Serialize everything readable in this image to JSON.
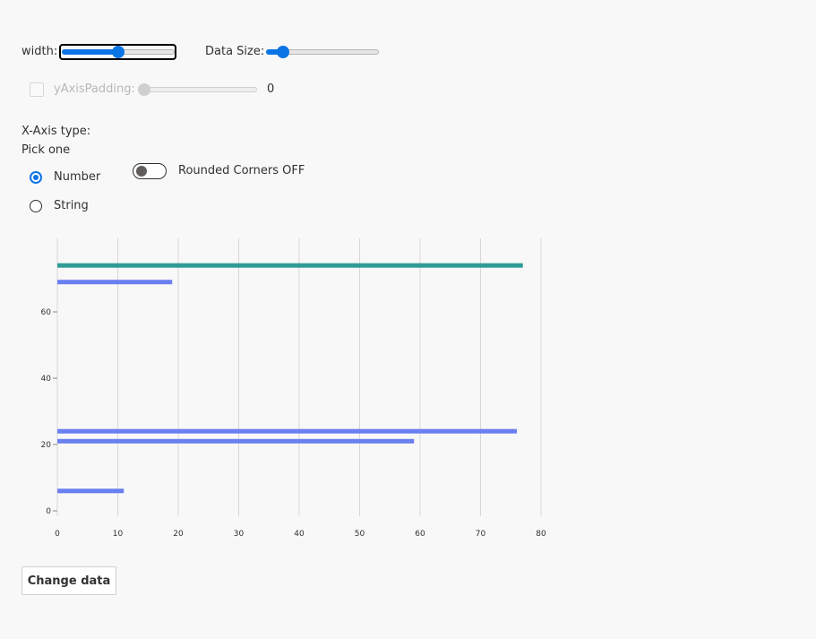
{
  "controls": {
    "width_label": "width:",
    "width_value_fraction": 0.5,
    "data_size_label": "Data Size:",
    "data_size_value_fraction": 0.15,
    "y_axis_padding_label": "yAxisPadding:",
    "y_axis_padding_value": "0",
    "y_axis_padding_fraction": 0.0,
    "x_axis_type_label": "X-Axis type:",
    "pick_one_label": "Pick one",
    "radio_number_label": "Number",
    "radio_string_label": "String",
    "rounded_corners_label": "Rounded Corners OFF",
    "change_data_label": "Change data"
  },
  "colors": {
    "accent": "#0b74e5",
    "bar_primary": "#6a7ff0",
    "bar_highlight": "#2e9c96",
    "gridline": "#d7d7d7",
    "axis_text": "#323130"
  },
  "chart_data": {
    "type": "bar",
    "orientation": "horizontal",
    "x_ticks": [
      0,
      10,
      20,
      30,
      40,
      50,
      60,
      70,
      80
    ],
    "y_ticks": [
      0,
      20,
      40,
      60
    ],
    "xlim": [
      0,
      80
    ],
    "ylim": [
      0,
      75
    ],
    "bars": [
      {
        "y": 74,
        "x": 77,
        "color": "#2e9c96"
      },
      {
        "y": 69,
        "x": 19,
        "color": "#6a7ff0"
      },
      {
        "y": 24,
        "x": 76,
        "color": "#6a7ff0"
      },
      {
        "y": 21,
        "x": 59,
        "color": "#6a7ff0"
      },
      {
        "y": 6,
        "x": 11,
        "color": "#6a7ff0"
      }
    ],
    "grid": true
  }
}
